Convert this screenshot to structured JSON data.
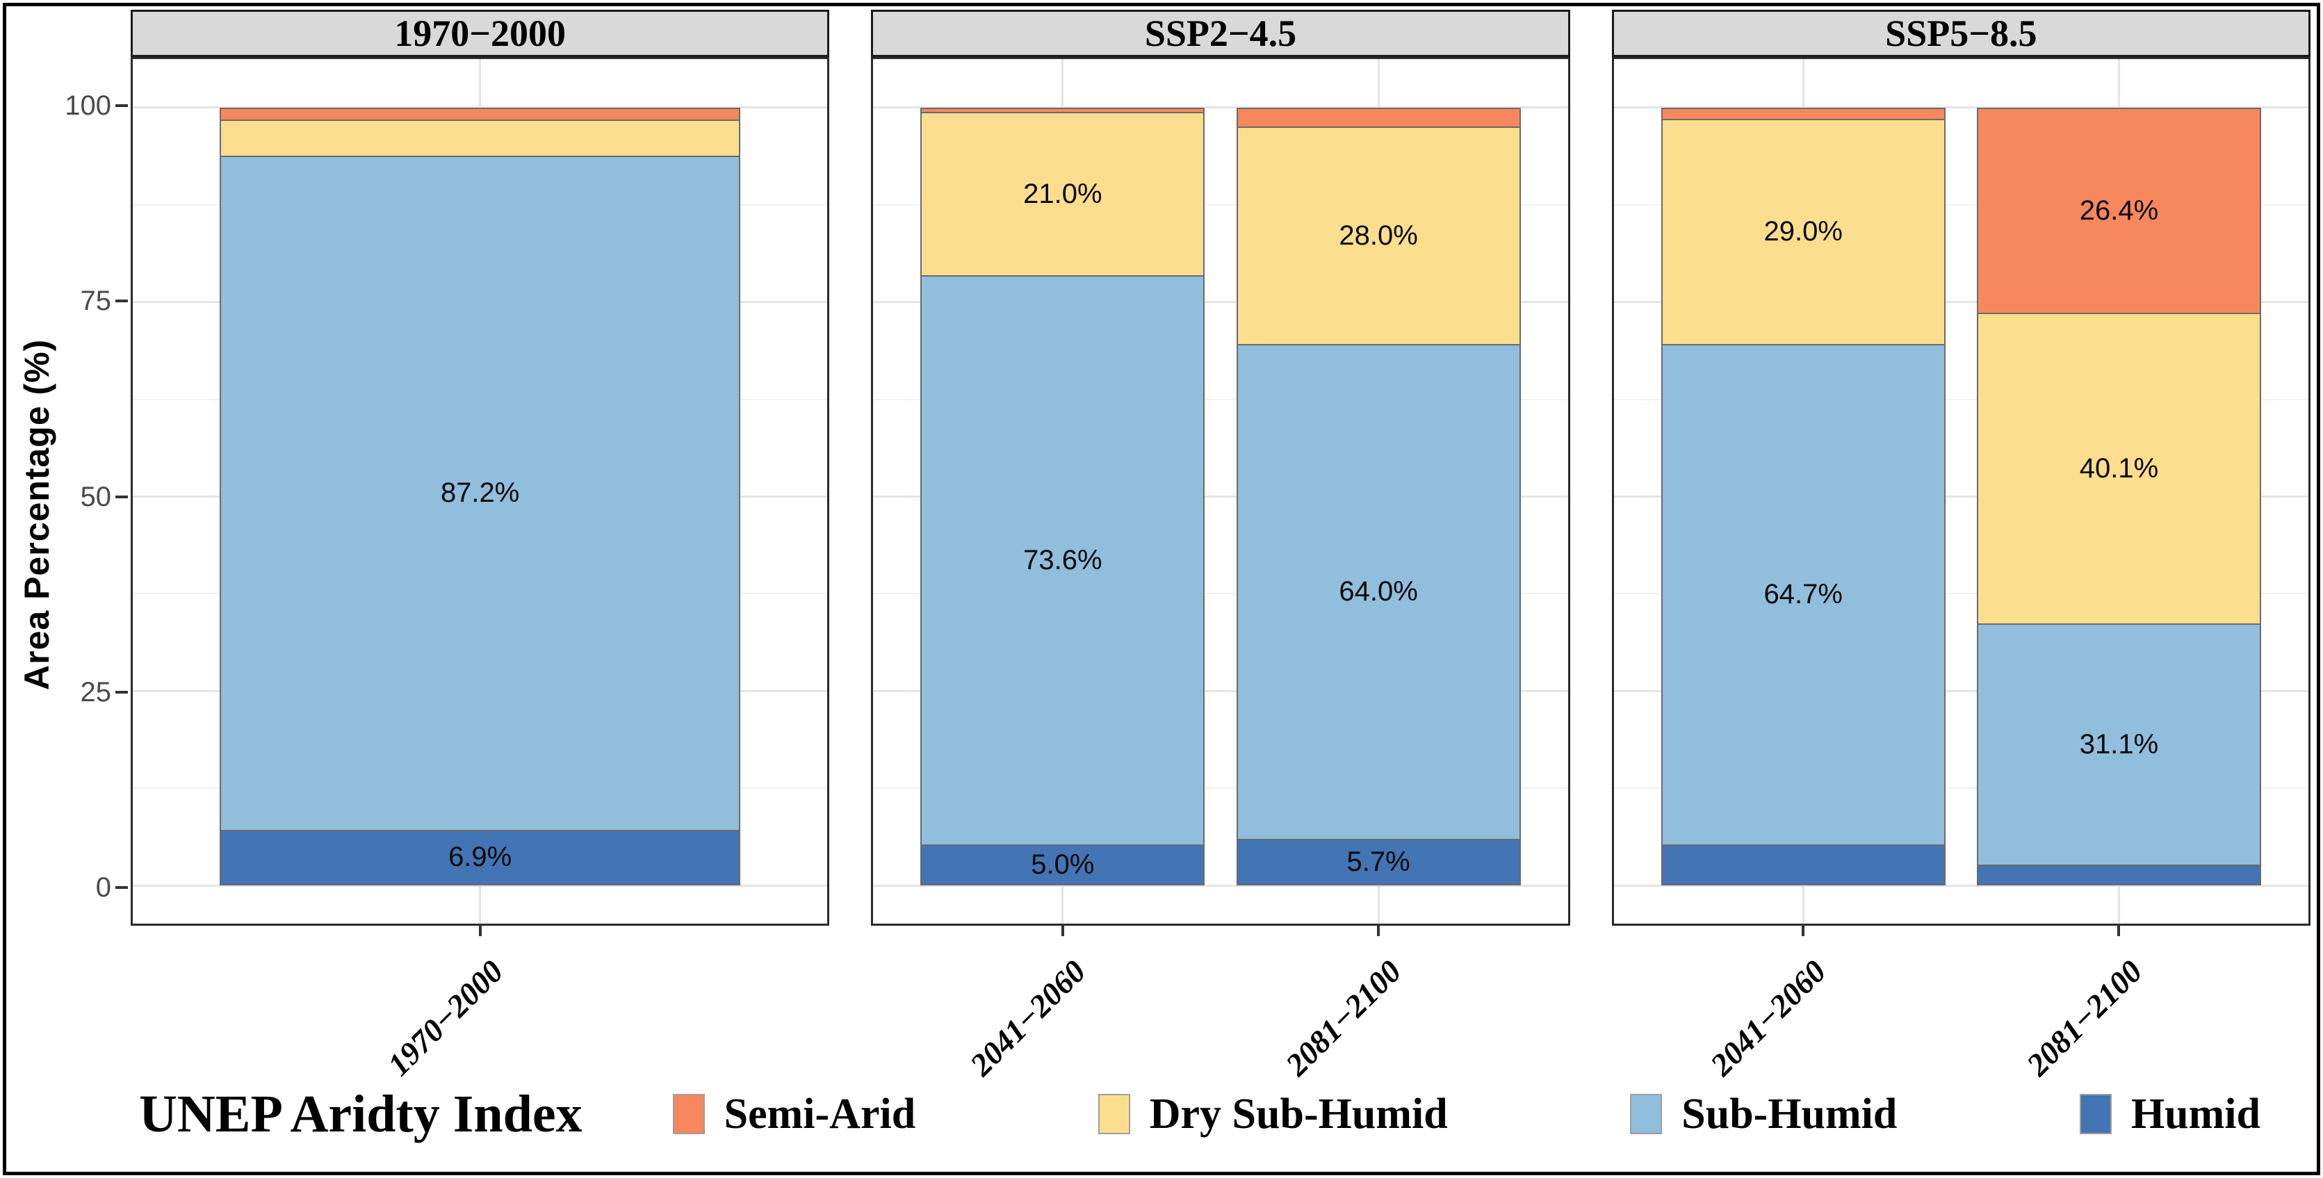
{
  "y_axis": {
    "title": "Area Percentage (%)",
    "ticks": [
      0,
      25,
      50,
      75,
      100
    ],
    "minor_ticks": [
      12.5,
      37.5,
      62.5,
      87.5
    ]
  },
  "legend": {
    "title": "UNEP Aridty Index",
    "items": [
      {
        "label": "Semi-Arid",
        "color": "#F7875D"
      },
      {
        "label": "Dry Sub-Humid",
        "color": "#FBDE8D"
      },
      {
        "label": "Sub-Humid",
        "color": "#90BEDC"
      },
      {
        "label": "Humid",
        "color": "#4374B4"
      }
    ]
  },
  "colors": {
    "semi_arid": "#F7875D",
    "dry_sub_humid": "#FBDE8D",
    "sub_humid": "#90BEDC",
    "humid": "#4374B4",
    "strip_background": "#D9D9D9",
    "panel_border": "#2B2B2B",
    "grid_major": "#E4E4E4",
    "grid_minor": "#F1F1F1"
  },
  "chart_data": {
    "type": "bar",
    "stacked": true,
    "ylabel": "Area Percentage (%)",
    "ylim": [
      0,
      100
    ],
    "grid": true,
    "legend_position": "bottom",
    "panels": [
      {
        "title": "1970−2000",
        "bars": [
          {
            "category": "1970−2000",
            "segments": [
              {
                "name": "Humid",
                "value": 6.9,
                "label": "6.9%"
              },
              {
                "name": "Sub-Humid",
                "value": 87.2,
                "label": "87.2%"
              },
              {
                "name": "Dry Sub-Humid",
                "value": 4.5,
                "label": ""
              },
              {
                "name": "Semi-Arid",
                "value": 1.4,
                "label": ""
              }
            ]
          }
        ]
      },
      {
        "title": "SSP2−4.5",
        "bars": [
          {
            "category": "2041−2060",
            "segments": [
              {
                "name": "Humid",
                "value": 5.0,
                "label": "5.0%"
              },
              {
                "name": "Sub-Humid",
                "value": 73.6,
                "label": "73.6%"
              },
              {
                "name": "Dry Sub-Humid",
                "value": 21.0,
                "label": "21.0%"
              },
              {
                "name": "Semi-Arid",
                "value": 0.4,
                "label": ""
              }
            ]
          },
          {
            "category": "2081−2100",
            "segments": [
              {
                "name": "Humid",
                "value": 5.7,
                "label": "5.7%"
              },
              {
                "name": "Sub-Humid",
                "value": 64.0,
                "label": "64.0%"
              },
              {
                "name": "Dry Sub-Humid",
                "value": 28.0,
                "label": "28.0%"
              },
              {
                "name": "Semi-Arid",
                "value": 2.3,
                "label": ""
              }
            ]
          }
        ]
      },
      {
        "title": "SSP5−8.5",
        "bars": [
          {
            "category": "2041−2060",
            "segments": [
              {
                "name": "Humid",
                "value": 5.0,
                "label": ""
              },
              {
                "name": "Sub-Humid",
                "value": 64.7,
                "label": "64.7%"
              },
              {
                "name": "Dry Sub-Humid",
                "value": 29.0,
                "label": "29.0%"
              },
              {
                "name": "Semi-Arid",
                "value": 1.3,
                "label": ""
              }
            ]
          },
          {
            "category": "2081−2100",
            "segments": [
              {
                "name": "Humid",
                "value": 2.4,
                "label": ""
              },
              {
                "name": "Sub-Humid",
                "value": 31.1,
                "label": "31.1%"
              },
              {
                "name": "Dry Sub-Humid",
                "value": 40.1,
                "label": "40.1%"
              },
              {
                "name": "Semi-Arid",
                "value": 26.4,
                "label": "26.4%"
              }
            ]
          }
        ]
      }
    ]
  }
}
